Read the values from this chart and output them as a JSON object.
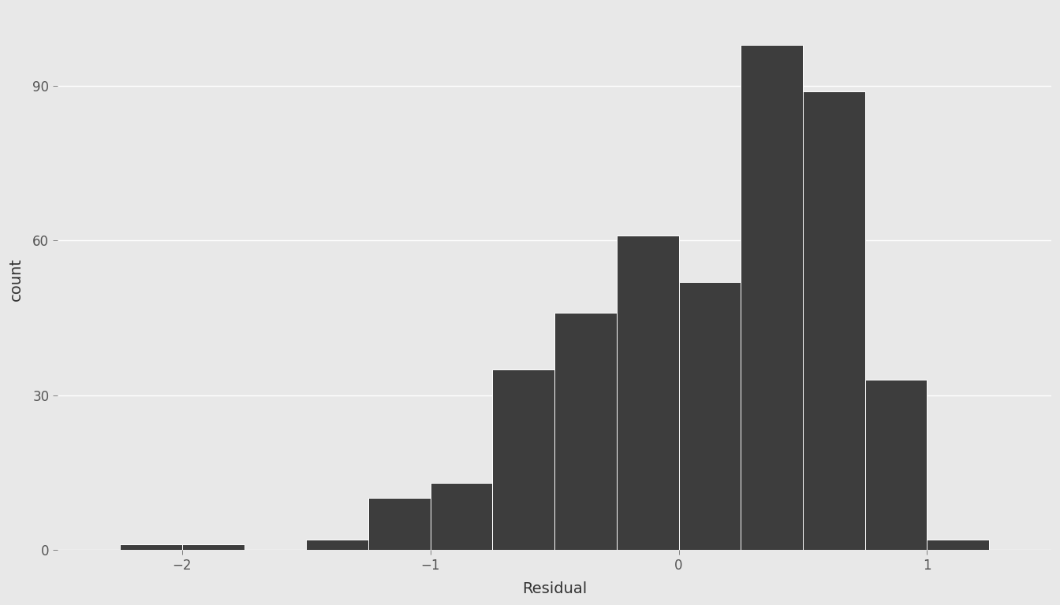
{
  "bin_edges": [
    -2.25,
    -2.0,
    -1.75,
    -1.5,
    -1.25,
    -1.0,
    -0.75,
    -0.5,
    -0.25,
    0.0,
    0.25,
    0.5,
    0.75,
    1.0,
    1.25
  ],
  "counts": [
    1,
    1,
    0,
    2,
    10,
    13,
    35,
    46,
    61,
    52,
    98,
    89,
    33,
    2
  ],
  "bar_color": "#3d3d3d",
  "bar_edgecolor": "white",
  "figure_background": "#e8e8e8",
  "panel_background": "#e8e8e8",
  "xlabel": "Residual",
  "ylabel": "count",
  "xlim": [
    -2.5,
    1.5
  ],
  "ylim": [
    0,
    105
  ],
  "yticks": [
    0,
    30,
    60,
    90
  ],
  "xticks": [
    -2,
    -1,
    0,
    1
  ],
  "xlabel_fontsize": 14,
  "ylabel_fontsize": 14,
  "tick_fontsize": 12,
  "grid_color": "white",
  "grid_linewidth": 1.0,
  "bar_linewidth": 0.7
}
